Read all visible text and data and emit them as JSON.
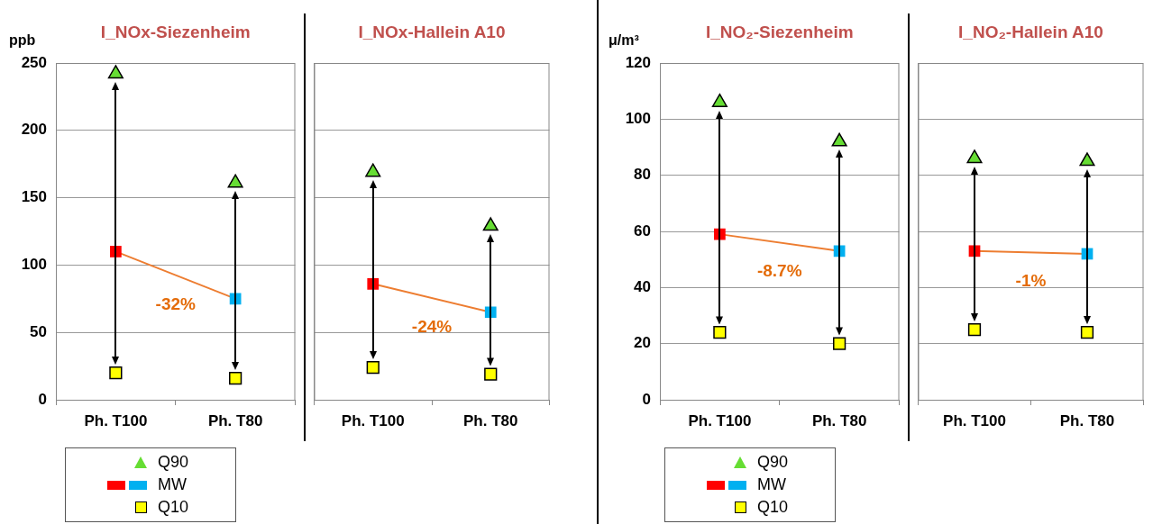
{
  "chart_data": [
    {
      "type": "line",
      "title": "I_NOx-Siezenheim",
      "ylabel": "ppb",
      "categories": [
        "Ph. T100",
        "Ph. T80"
      ],
      "ylim": [
        0,
        250
      ],
      "yticks": [
        0,
        50,
        100,
        150,
        200,
        250
      ],
      "grid": "y",
      "legend": "bottom left",
      "annotations": [
        "-32%"
      ],
      "series": [
        {
          "name": "Q90",
          "type": "scatter",
          "marker": "triangle",
          "color": "#66dd33",
          "values": [
            242,
            161
          ]
        },
        {
          "name": "MW",
          "type": "line",
          "marker": "square",
          "color": "#ed7d31",
          "colors": [
            "#ff0000",
            "#00b0f0"
          ],
          "values": [
            110,
            75
          ]
        },
        {
          "name": "Q10",
          "type": "scatter",
          "marker": "square",
          "color": "#ffff00",
          "values": [
            20,
            16
          ]
        }
      ]
    },
    {
      "type": "line",
      "title": "I_NOx-Hallein A10",
      "categories": [
        "Ph. T100",
        "Ph. T80"
      ],
      "ylim": [
        0,
        250
      ],
      "yticks": [
        0,
        50,
        100,
        150,
        200,
        250
      ],
      "grid": "y",
      "tick_labels": "x",
      "annotations": [
        "-24%"
      ],
      "series": [
        {
          "type": "scatter",
          "marker": "triangle",
          "color": "#66dd33",
          "values": [
            169,
            129
          ]
        },
        {
          "type": "line",
          "marker": "square",
          "color": "#ed7d31",
          "colors": [
            "#ff0000",
            "#00b0f0"
          ],
          "values": [
            86,
            65
          ]
        },
        {
          "type": "scatter",
          "marker": "square",
          "color": "#ffff00",
          "values": [
            24,
            19
          ]
        }
      ]
    },
    {
      "type": "line",
      "title": "I_NO₂-Siezenheim",
      "ylabel": "μ/m³",
      "categories": [
        "Ph. T100",
        "Ph. T80"
      ],
      "ylim": [
        0,
        120
      ],
      "yticks": [
        0,
        20,
        40,
        60,
        80,
        100,
        120
      ],
      "grid": "y",
      "legend": "bottom left",
      "annotations": [
        "-8.7%"
      ],
      "series": [
        {
          "name": "Q90",
          "type": "scatter",
          "marker": "triangle",
          "color": "#66dd33",
          "values": [
            106,
            92
          ]
        },
        {
          "name": "MW",
          "type": "line",
          "marker": "square",
          "color": "#ed7d31",
          "colors": [
            "#ff0000",
            "#00b0f0"
          ],
          "values": [
            59,
            53
          ]
        },
        {
          "name": "Q10",
          "type": "scatter",
          "marker": "square",
          "color": "#ffff00",
          "values": [
            24,
            20
          ]
        }
      ]
    },
    {
      "type": "line",
      "title": "I_NO₂-Hallein A10",
      "categories": [
        "Ph. T100",
        "Ph. T80"
      ],
      "ylim": [
        0,
        120
      ],
      "yticks": [
        0,
        20,
        40,
        60,
        80,
        100,
        120
      ],
      "grid": "y",
      "tick_labels": "x",
      "annotations": [
        "-1%"
      ],
      "series": [
        {
          "type": "scatter",
          "marker": "triangle",
          "color": "#66dd33",
          "values": [
            86,
            85
          ]
        },
        {
          "type": "line",
          "marker": "square",
          "color": "#ed7d31",
          "colors": [
            "#ff0000",
            "#00b0f0"
          ],
          "values": [
            53,
            52
          ]
        },
        {
          "type": "scatter",
          "marker": "square",
          "color": "#ffff00",
          "values": [
            25,
            24
          ]
        }
      ]
    }
  ]
}
